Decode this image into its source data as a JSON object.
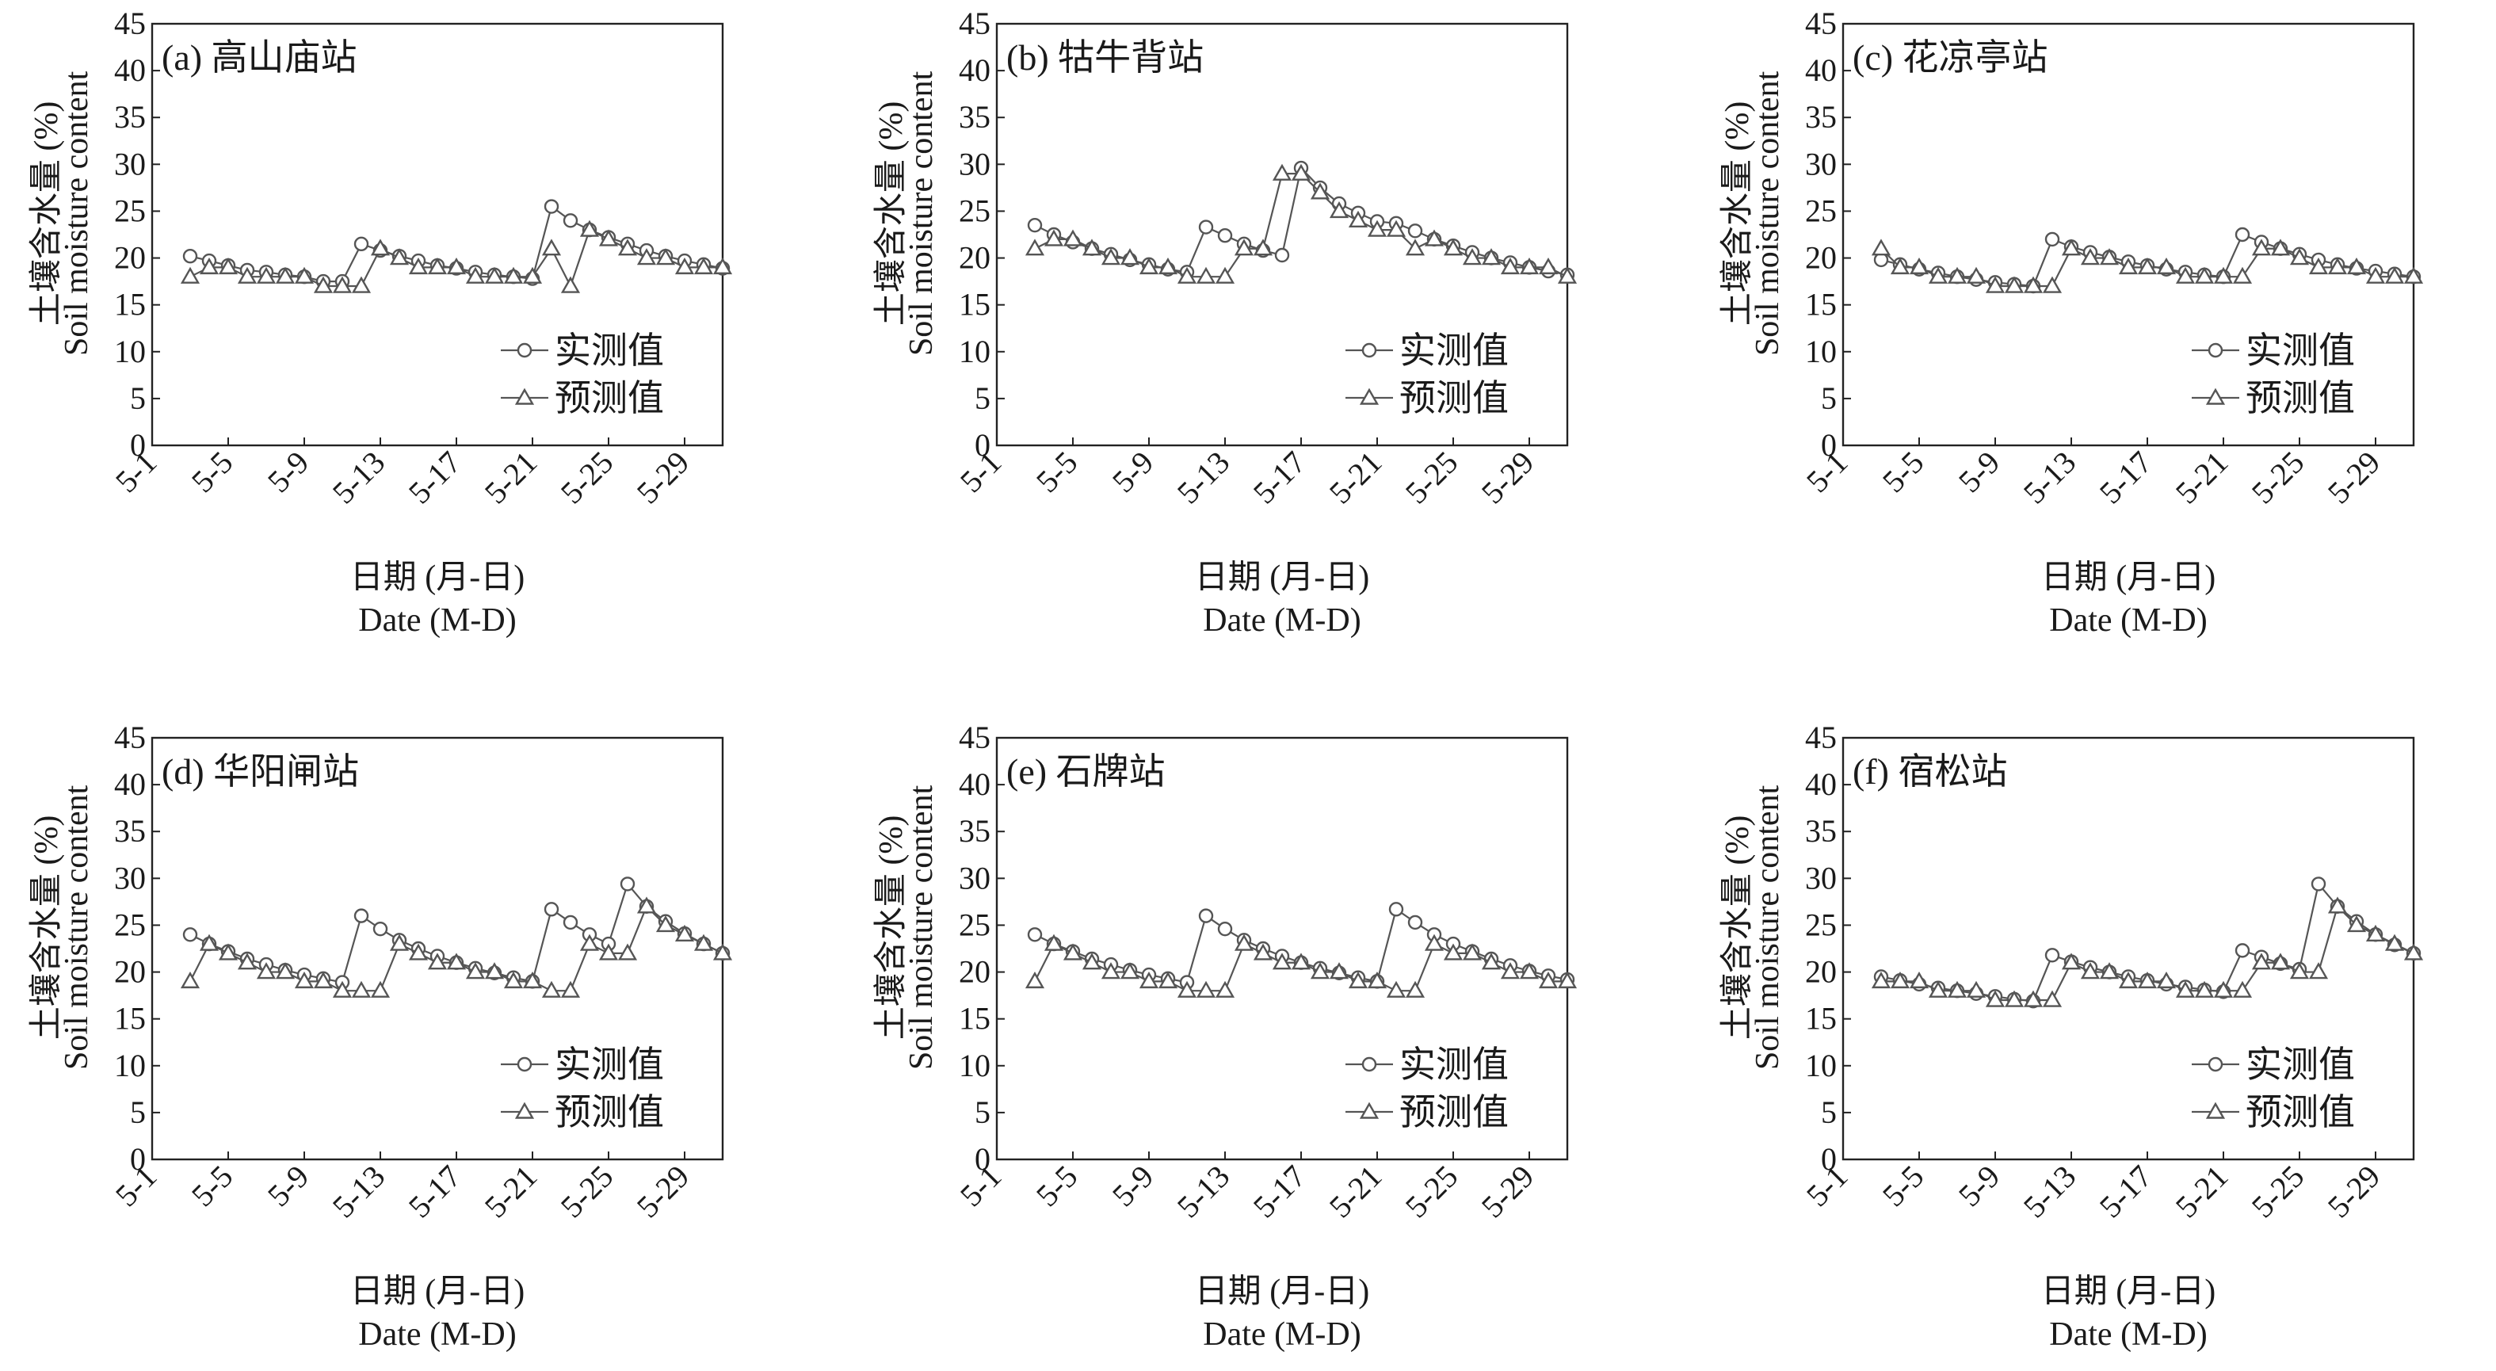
{
  "chart_data": [
    {
      "type": "line",
      "title": "(a) 高山庙站",
      "ylabel_cn": "土壤含水量 (%)",
      "ylabel_en": "Soil moisture content",
      "xlabel_cn": "日期 (月-日)",
      "xlabel_en": "Date (M-D)",
      "ylim": [
        0,
        45
      ],
      "yticks": [
        0,
        5,
        10,
        15,
        20,
        25,
        30,
        35,
        40,
        45
      ],
      "xticks": [
        "5-1",
        "5-5",
        "5-9",
        "5-13",
        "5-17",
        "5-21",
        "5-25",
        "5-29"
      ],
      "legend_position": "bottom-right",
      "x": [
        3,
        4,
        5,
        6,
        7,
        8,
        9,
        10,
        11,
        12,
        13,
        14,
        15,
        16,
        17,
        18,
        19,
        20,
        21,
        22,
        23,
        24,
        25,
        26,
        27,
        28,
        29,
        30,
        31
      ],
      "series": [
        {
          "name": "实测值",
          "marker": "circle",
          "values": [
            20.2,
            19.7,
            19.2,
            18.7,
            18.5,
            18.2,
            18.0,
            17.5,
            17.5,
            21.5,
            20.8,
            20.2,
            19.7,
            19.2,
            18.9,
            18.5,
            18.2,
            18.0,
            17.8,
            25.5,
            24.0,
            23.0,
            22.2,
            21.5,
            20.8,
            20.2,
            19.7,
            19.3,
            18.9
          ]
        },
        {
          "name": "预测值",
          "marker": "triangle",
          "values": [
            18.0,
            19.0,
            19.0,
            18.0,
            18.0,
            18.0,
            18.0,
            17.0,
            17.0,
            17.0,
            21.0,
            20.0,
            19.0,
            19.0,
            19.0,
            18.0,
            18.0,
            18.0,
            18.0,
            21.0,
            17.0,
            23.0,
            22.0,
            21.0,
            20.0,
            20.0,
            19.0,
            19.0,
            19.0
          ]
        }
      ]
    },
    {
      "type": "line",
      "title": "(b) 牯牛背站",
      "ylabel_cn": "土壤含水量 (%)",
      "ylabel_en": "Soil moisture content",
      "xlabel_cn": "日期 (月-日)",
      "xlabel_en": "Date (M-D)",
      "ylim": [
        0,
        45
      ],
      "yticks": [
        0,
        5,
        10,
        15,
        20,
        25,
        30,
        35,
        40,
        45
      ],
      "xticks": [
        "5-1",
        "5-5",
        "5-9",
        "5-13",
        "5-17",
        "5-21",
        "5-25",
        "5-29"
      ],
      "legend_position": "bottom-right",
      "x": [
        3,
        4,
        5,
        6,
        7,
        8,
        9,
        10,
        11,
        12,
        13,
        14,
        15,
        16,
        17,
        18,
        19,
        20,
        21,
        22,
        23,
        24,
        25,
        26,
        27,
        28,
        29,
        30,
        31
      ],
      "series": [
        {
          "name": "实测值",
          "marker": "circle",
          "values": [
            23.5,
            22.5,
            21.7,
            21.0,
            20.4,
            19.8,
            19.3,
            18.8,
            18.5,
            23.3,
            22.4,
            21.5,
            20.8,
            20.3,
            29.6,
            27.5,
            25.8,
            24.8,
            23.9,
            23.7,
            22.9,
            22.0,
            21.3,
            20.6,
            20.0,
            19.5,
            19.0,
            18.6,
            18.2
          ]
        },
        {
          "name": "预测值",
          "marker": "triangle",
          "values": [
            21.0,
            22.0,
            22.0,
            21.0,
            20.0,
            20.0,
            19.0,
            19.0,
            18.0,
            18.0,
            18.0,
            21.0,
            21.0,
            29.0,
            29.0,
            27.0,
            25.0,
            24.0,
            23.0,
            23.0,
            21.0,
            22.0,
            21.0,
            20.0,
            20.0,
            19.0,
            19.0,
            19.0,
            18.0
          ]
        }
      ]
    },
    {
      "type": "line",
      "title": "(c) 花凉亭站",
      "ylabel_cn": "土壤含水量 (%)",
      "ylabel_en": "Soil moisture content",
      "xlabel_cn": "日期 (月-日)",
      "xlabel_en": "Date (M-D)",
      "ylim": [
        0,
        45
      ],
      "yticks": [
        0,
        5,
        10,
        15,
        20,
        25,
        30,
        35,
        40,
        45
      ],
      "xticks": [
        "5-1",
        "5-5",
        "5-9",
        "5-13",
        "5-17",
        "5-21",
        "5-25",
        "5-29"
      ],
      "legend_position": "bottom-right",
      "x": [
        3,
        4,
        5,
        6,
        7,
        8,
        9,
        10,
        11,
        12,
        13,
        14,
        15,
        16,
        17,
        18,
        19,
        20,
        21,
        22,
        23,
        24,
        25,
        26,
        27,
        28,
        29,
        30,
        31
      ],
      "series": [
        {
          "name": "实测值",
          "marker": "circle",
          "values": [
            19.8,
            19.3,
            18.8,
            18.4,
            18.0,
            17.7,
            17.4,
            17.2,
            17.0,
            22.0,
            21.2,
            20.6,
            20.1,
            19.6,
            19.2,
            18.8,
            18.5,
            18.2,
            18.0,
            22.5,
            21.7,
            21.0,
            20.4,
            19.8,
            19.3,
            18.9,
            18.6,
            18.3,
            18.0
          ]
        },
        {
          "name": "预测值",
          "marker": "triangle",
          "values": [
            21.0,
            19.0,
            19.0,
            18.0,
            18.0,
            18.0,
            17.0,
            17.0,
            17.0,
            17.0,
            21.0,
            20.0,
            20.0,
            19.0,
            19.0,
            19.0,
            18.0,
            18.0,
            18.0,
            18.0,
            21.0,
            21.0,
            20.0,
            19.0,
            19.0,
            19.0,
            18.0,
            18.0,
            18.0
          ]
        }
      ]
    },
    {
      "type": "line",
      "title": "(d) 华阳闸站",
      "ylabel_cn": "土壤含水量 (%)",
      "ylabel_en": "Soil moisture content",
      "xlabel_cn": "日期 (月-日)",
      "xlabel_en": "Date (M-D)",
      "ylim": [
        0,
        45
      ],
      "yticks": [
        0,
        5,
        10,
        15,
        20,
        25,
        30,
        35,
        40,
        45
      ],
      "xticks": [
        "5-1",
        "5-5",
        "5-9",
        "5-13",
        "5-17",
        "5-21",
        "5-25",
        "5-29"
      ],
      "legend_position": "bottom-right",
      "x": [
        3,
        4,
        5,
        6,
        7,
        8,
        9,
        10,
        11,
        12,
        13,
        14,
        15,
        16,
        17,
        18,
        19,
        20,
        21,
        22,
        23,
        24,
        25,
        26,
        27,
        28,
        29,
        30,
        31
      ],
      "series": [
        {
          "name": "实测值",
          "marker": "circle",
          "values": [
            24.0,
            23.0,
            22.2,
            21.4,
            20.8,
            20.2,
            19.7,
            19.3,
            18.9,
            26.0,
            24.6,
            23.4,
            22.5,
            21.7,
            21.0,
            20.4,
            19.9,
            19.4,
            19.0,
            26.7,
            25.3,
            24.0,
            23.0,
            29.4,
            27.0,
            25.4,
            24.1,
            23.0,
            22.0
          ]
        },
        {
          "name": "预测值",
          "marker": "triangle",
          "values": [
            19.0,
            23.0,
            22.0,
            21.0,
            20.0,
            20.0,
            19.0,
            19.0,
            18.0,
            18.0,
            18.0,
            23.0,
            22.0,
            21.0,
            21.0,
            20.0,
            20.0,
            19.0,
            19.0,
            18.0,
            18.0,
            23.0,
            22.0,
            22.0,
            27.0,
            25.0,
            24.0,
            23.0,
            22.0
          ]
        }
      ]
    },
    {
      "type": "line",
      "title": "(e) 石牌站",
      "ylabel_cn": "土壤含水量 (%)",
      "ylabel_en": "Soil moisture content",
      "xlabel_cn": "日期 (月-日)",
      "xlabel_en": "Date (M-D)",
      "ylim": [
        0,
        45
      ],
      "yticks": [
        0,
        5,
        10,
        15,
        20,
        25,
        30,
        35,
        40,
        45
      ],
      "xticks": [
        "5-1",
        "5-5",
        "5-9",
        "5-13",
        "5-17",
        "5-21",
        "5-25",
        "5-29"
      ],
      "legend_position": "bottom-right",
      "x": [
        3,
        4,
        5,
        6,
        7,
        8,
        9,
        10,
        11,
        12,
        13,
        14,
        15,
        16,
        17,
        18,
        19,
        20,
        21,
        22,
        23,
        24,
        25,
        26,
        27,
        28,
        29,
        30,
        31
      ],
      "series": [
        {
          "name": "实测值",
          "marker": "circle",
          "values": [
            24.0,
            23.0,
            22.2,
            21.4,
            20.8,
            20.2,
            19.7,
            19.3,
            18.9,
            26.0,
            24.6,
            23.4,
            22.5,
            21.7,
            21.0,
            20.4,
            19.9,
            19.4,
            19.0,
            26.7,
            25.3,
            24.0,
            23.0,
            22.2,
            21.4,
            20.7,
            20.1,
            19.6,
            19.2
          ]
        },
        {
          "name": "预测值",
          "marker": "triangle",
          "values": [
            19.0,
            23.0,
            22.0,
            21.0,
            20.0,
            20.0,
            19.0,
            19.0,
            18.0,
            18.0,
            18.0,
            23.0,
            22.0,
            21.0,
            21.0,
            20.0,
            20.0,
            19.0,
            19.0,
            18.0,
            18.0,
            23.0,
            22.0,
            22.0,
            21.0,
            20.0,
            20.0,
            19.0,
            19.0
          ]
        }
      ]
    },
    {
      "type": "line",
      "title": "(f) 宿松站",
      "ylabel_cn": "土壤含水量 (%)",
      "ylabel_en": "Soil moisture content",
      "xlabel_cn": "日期 (月-日)",
      "xlabel_en": "Date (M-D)",
      "ylim": [
        0,
        45
      ],
      "yticks": [
        0,
        5,
        10,
        15,
        20,
        25,
        30,
        35,
        40,
        45
      ],
      "xticks": [
        "5-1",
        "5-5",
        "5-9",
        "5-13",
        "5-17",
        "5-21",
        "5-25",
        "5-29"
      ],
      "legend_position": "bottom-right",
      "x": [
        3,
        4,
        5,
        6,
        7,
        8,
        9,
        10,
        11,
        12,
        13,
        14,
        15,
        16,
        17,
        18,
        19,
        20,
        21,
        22,
        23,
        24,
        25,
        26,
        27,
        28,
        29,
        30,
        31
      ],
      "series": [
        {
          "name": "实测值",
          "marker": "circle",
          "values": [
            19.5,
            19.1,
            18.7,
            18.3,
            18.0,
            17.7,
            17.4,
            17.1,
            16.9,
            21.8,
            21.1,
            20.5,
            20.0,
            19.5,
            19.1,
            18.7,
            18.4,
            18.1,
            17.9,
            22.3,
            21.6,
            20.9,
            20.3,
            29.4,
            27.0,
            25.4,
            24.0,
            22.9,
            22.0
          ]
        },
        {
          "name": "预测值",
          "marker": "triangle",
          "values": [
            19.0,
            19.0,
            19.0,
            18.0,
            18.0,
            18.0,
            17.0,
            17.0,
            17.0,
            17.0,
            21.0,
            20.0,
            20.0,
            19.0,
            19.0,
            19.0,
            18.0,
            18.0,
            18.0,
            18.0,
            21.0,
            21.0,
            20.0,
            20.0,
            27.0,
            25.0,
            24.0,
            23.0,
            22.0
          ]
        }
      ]
    }
  ]
}
